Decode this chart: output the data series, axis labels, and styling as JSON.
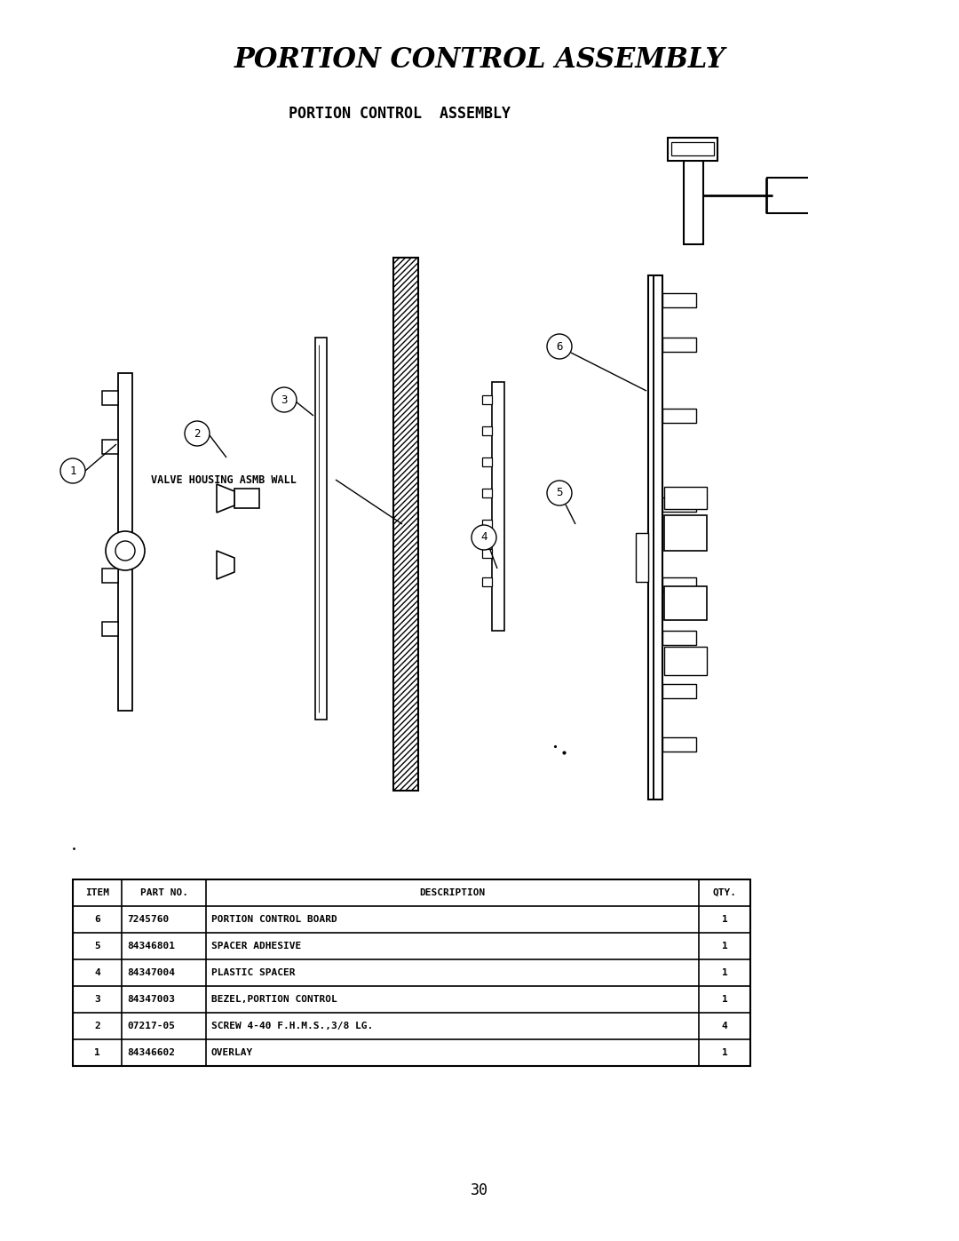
{
  "title_italic": "PORTION CONTROL ASSEMBLY",
  "title_sub": "PORTION CONTROL  ASSEMBLY",
  "valve_label": "VALVE HOUSING ASMB WALL",
  "page_number": "30",
  "background_color": "#ffffff",
  "line_color": "#000000",
  "table": {
    "headers": [
      "ITEM",
      "PART NO.",
      "DESCRIPTION",
      "QTY."
    ],
    "rows": [
      [
        "6",
        "7245760",
        "PORTION CONTROL BOARD",
        "1"
      ],
      [
        "5",
        "84346801",
        "SPACER ADHESIVE",
        "1"
      ],
      [
        "4",
        "84347004",
        "PLASTIC SPACER",
        "1"
      ],
      [
        "3",
        "84347003",
        "BEZEL,PORTION CONTROL",
        "1"
      ],
      [
        "2",
        "07217-05",
        "SCREW 4-40 F.H.M.S.,3/8 LG.",
        "4"
      ],
      [
        "1",
        "84346602",
        "OVERLAY",
        "1"
      ]
    ]
  },
  "fig_width": 10.8,
  "fig_height": 13.97
}
